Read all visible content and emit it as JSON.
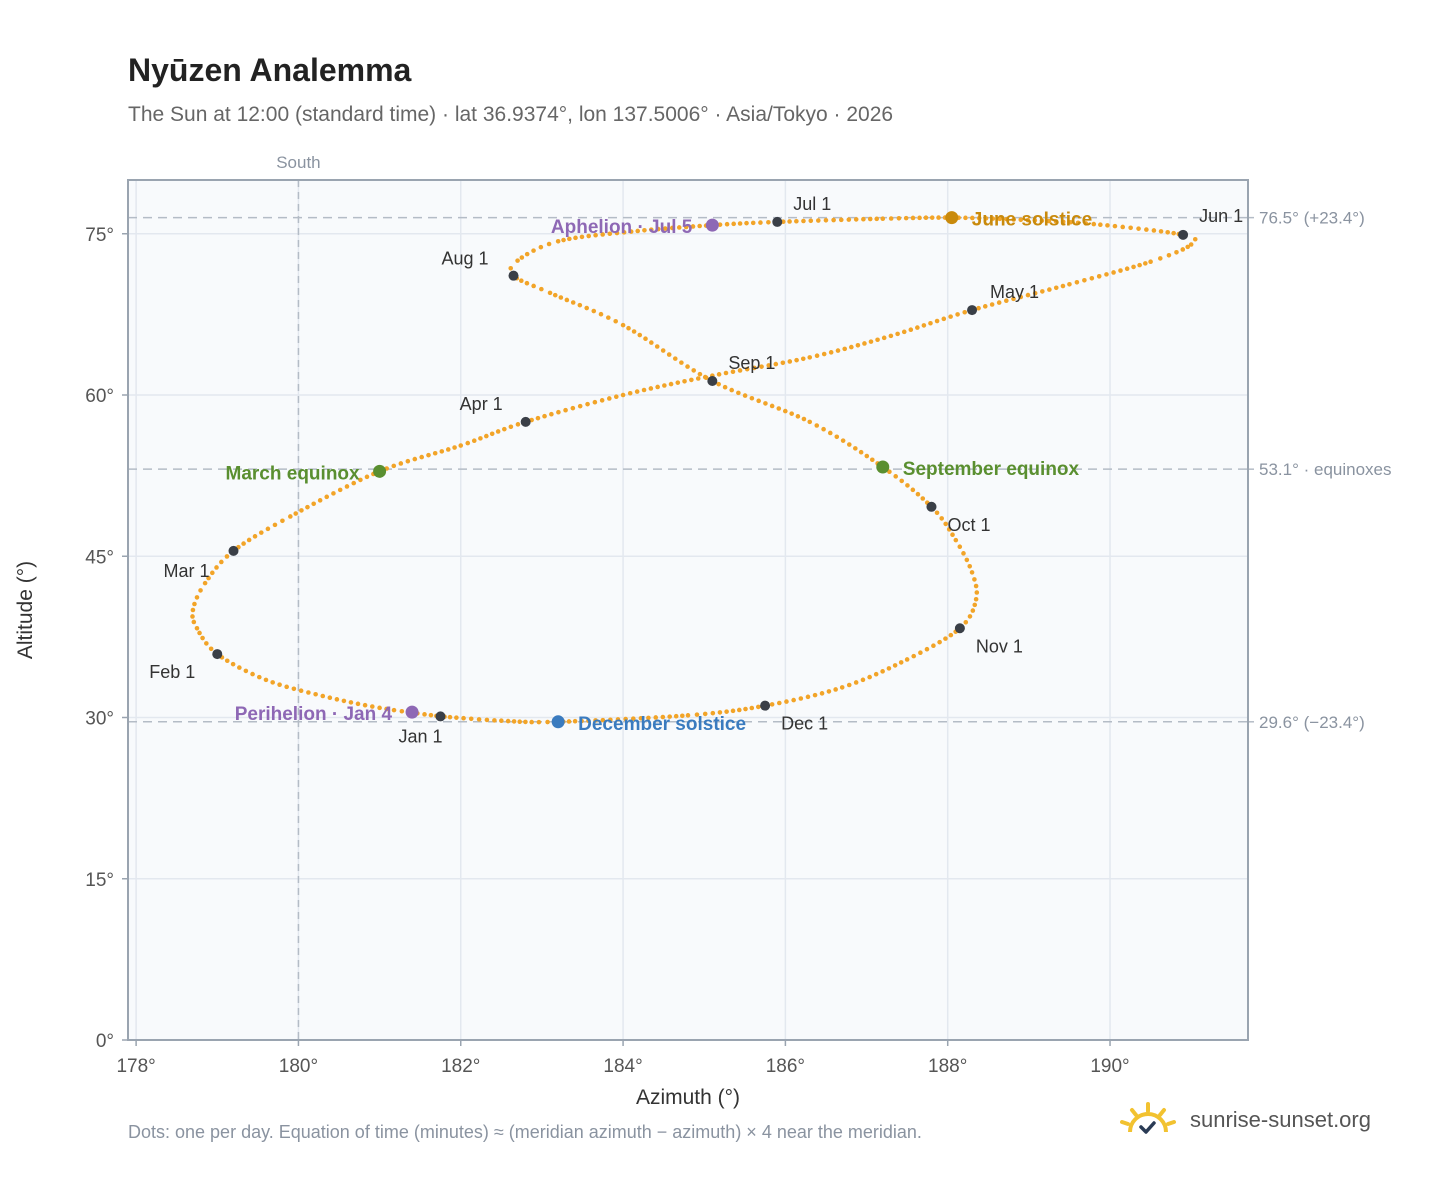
{
  "header": {
    "title": "Nyūzen Analemma",
    "subtitle": "The Sun at 12:00 (standard time) · lat 36.9374°, lon 137.5006° · Asia/Tokyo · 2026"
  },
  "footer": {
    "note": "Dots: one per day. Equation of time (minutes) ≈ (meridian azimuth − azimuth) × 4 near the meridian.",
    "brand": "sunrise-sunset.org"
  },
  "colors": {
    "path": "#f2a428",
    "month_marker": "#3a3f47",
    "equinox": "#5a8f30",
    "june_solstice": "#c98a0c",
    "december_solstice": "#3a7bbf",
    "apsis": "#8e68b5",
    "grid": "#e3e8ef",
    "plot_bg": "#f8fafc",
    "guide": "#b4bcc6"
  },
  "chart_data": {
    "type": "scatter",
    "xlabel": "Azimuth (°)",
    "ylabel": "Altitude (°)",
    "xlim": [
      177.9,
      191.7
    ],
    "ylim": [
      0,
      80
    ],
    "xticks": [
      178,
      180,
      182,
      184,
      186,
      188,
      190
    ],
    "yticks": [
      0,
      15,
      30,
      45,
      60,
      75
    ],
    "xtick_labels": [
      "178°",
      "180°",
      "182°",
      "184°",
      "186°",
      "188°",
      "190°"
    ],
    "ytick_labels": [
      "0°",
      "15°",
      "30°",
      "45°",
      "60°",
      "75°"
    ],
    "grid": true,
    "south_line": {
      "azimuth": 180,
      "label": "South"
    },
    "reference_lines": [
      {
        "altitude": 76.5,
        "label": "76.5° (+23.4°)"
      },
      {
        "altitude": 53.1,
        "label": "53.1° · equinoxes"
      },
      {
        "altitude": 29.6,
        "label": "29.6° (−23.4°)"
      }
    ],
    "path_series": {
      "description": "one dot per day",
      "points": [
        [
          181.75,
          30.1
        ],
        [
          181.0,
          30.9
        ],
        [
          180.3,
          32.0
        ],
        [
          179.6,
          33.5
        ],
        [
          179.0,
          35.9
        ],
        [
          178.75,
          38.3
        ],
        [
          178.7,
          40.0
        ],
        [
          178.85,
          42.5
        ],
        [
          179.2,
          45.5
        ],
        [
          179.9,
          48.7
        ],
        [
          181.0,
          52.9
        ],
        [
          182.0,
          55.3
        ],
        [
          182.8,
          57.5
        ],
        [
          184.0,
          60.0
        ],
        [
          185.1,
          61.8
        ],
        [
          186.3,
          63.5
        ],
        [
          187.3,
          65.5
        ],
        [
          188.3,
          67.9
        ],
        [
          189.5,
          70.3
        ],
        [
          190.5,
          72.4
        ],
        [
          191.0,
          74.0
        ],
        [
          190.9,
          74.9
        ],
        [
          189.8,
          75.9
        ],
        [
          188.9,
          76.3
        ],
        [
          188.05,
          76.5
        ],
        [
          187.2,
          76.4
        ],
        [
          185.9,
          76.1
        ],
        [
          185.1,
          75.8
        ],
        [
          184.1,
          75.2
        ],
        [
          183.2,
          74.3
        ],
        [
          182.7,
          72.5
        ],
        [
          182.65,
          71.1
        ],
        [
          183.1,
          69.5
        ],
        [
          184.0,
          66.5
        ],
        [
          185.1,
          61.3
        ],
        [
          186.3,
          57.5
        ],
        [
          187.2,
          53.3
        ],
        [
          187.8,
          49.6
        ],
        [
          188.1,
          46.5
        ],
        [
          188.3,
          43.5
        ],
        [
          188.35,
          41.0
        ],
        [
          188.15,
          38.3
        ],
        [
          187.5,
          35.4
        ],
        [
          186.7,
          32.8
        ],
        [
          185.75,
          31.1
        ],
        [
          184.8,
          30.2
        ],
        [
          183.2,
          29.6
        ],
        [
          182.5,
          29.7
        ],
        [
          181.75,
          30.1
        ]
      ]
    },
    "month_markers": [
      {
        "label": "Jan 1",
        "azimuth": 181.75,
        "altitude": 30.1
      },
      {
        "label": "Feb 1",
        "azimuth": 179.0,
        "altitude": 35.9
      },
      {
        "label": "Mar 1",
        "azimuth": 179.2,
        "altitude": 45.5
      },
      {
        "label": "Apr 1",
        "azimuth": 182.8,
        "altitude": 57.5
      },
      {
        "label": "May 1",
        "azimuth": 188.3,
        "altitude": 67.9
      },
      {
        "label": "Jun 1",
        "azimuth": 190.9,
        "altitude": 74.9
      },
      {
        "label": "Jul 1",
        "azimuth": 185.9,
        "altitude": 76.1
      },
      {
        "label": "Aug 1",
        "azimuth": 182.65,
        "altitude": 71.1
      },
      {
        "label": "Sep 1",
        "azimuth": 185.1,
        "altitude": 61.3
      },
      {
        "label": "Oct 1",
        "azimuth": 187.8,
        "altitude": 49.6
      },
      {
        "label": "Nov 1",
        "azimuth": 188.15,
        "altitude": 38.3
      },
      {
        "label": "Dec 1",
        "azimuth": 185.75,
        "altitude": 31.1
      }
    ],
    "events": [
      {
        "label": "March equinox",
        "azimuth": 181.0,
        "altitude": 52.9,
        "color_key": "equinox"
      },
      {
        "label": "September equinox",
        "azimuth": 187.2,
        "altitude": 53.3,
        "color_key": "equinox"
      },
      {
        "label": "June solstice",
        "azimuth": 188.05,
        "altitude": 76.5,
        "color_key": "june_solstice"
      },
      {
        "label": "December solstice",
        "azimuth": 183.2,
        "altitude": 29.6,
        "color_key": "december_solstice"
      },
      {
        "label": "Perihelion · Jan 4",
        "azimuth": 181.4,
        "altitude": 30.5,
        "color_key": "apsis"
      },
      {
        "label": "Aphelion · Jul 5",
        "azimuth": 185.1,
        "altitude": 75.8,
        "color_key": "apsis"
      }
    ]
  }
}
